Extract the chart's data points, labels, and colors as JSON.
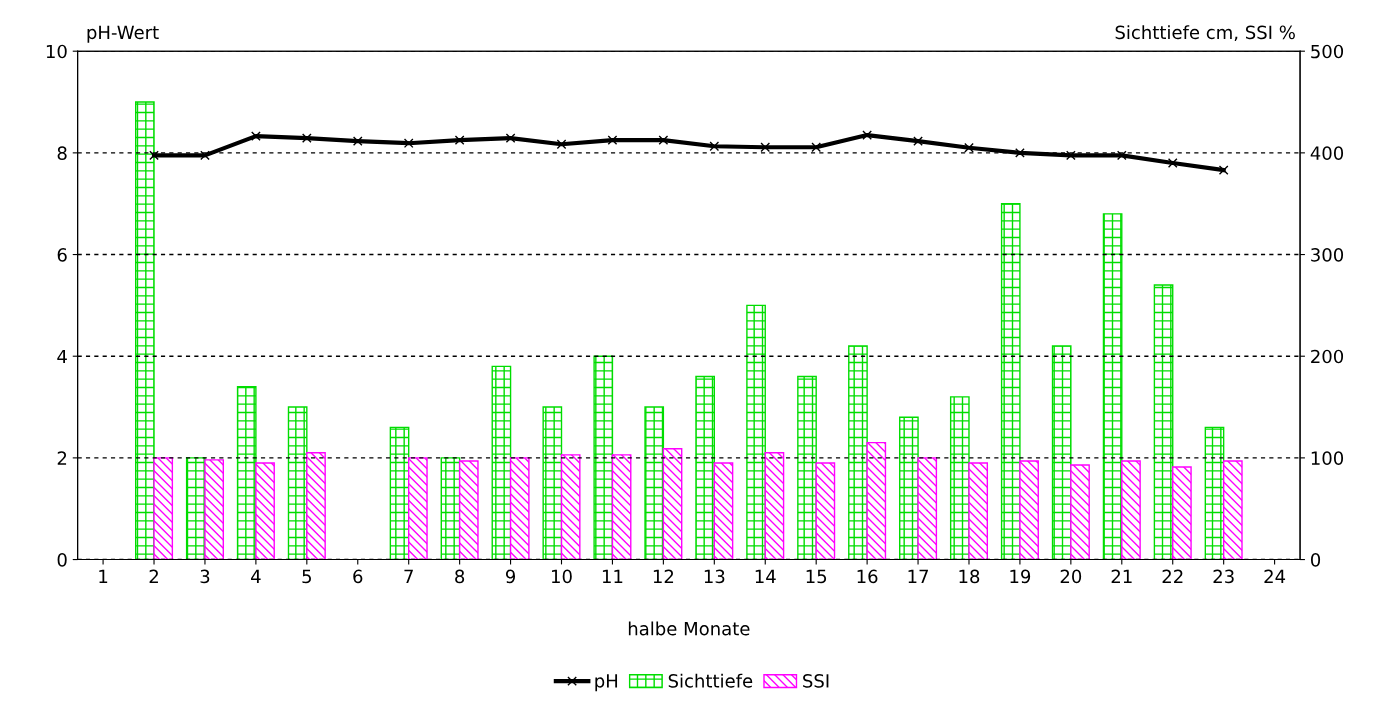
{
  "chart_data": {
    "type": "bar",
    "xlabel": "halbe Monate",
    "ylabel": "pH-Wert",
    "y2label": "Sichttiefe cm, SSI %",
    "categories": [
      "1",
      "2",
      "3",
      "4",
      "5",
      "6",
      "7",
      "8",
      "9",
      "10",
      "11",
      "12",
      "13",
      "14",
      "15",
      "16",
      "17",
      "18",
      "19",
      "20",
      "21",
      "22",
      "23",
      "24"
    ],
    "series": [
      {
        "name": "pH",
        "type": "line",
        "color": "#000000",
        "marker": "cross",
        "values": [
          null,
          7.95,
          7.95,
          8.33,
          8.29,
          8.23,
          8.19,
          8.25,
          8.29,
          8.17,
          8.25,
          8.25,
          8.13,
          8.11,
          8.11,
          8.35,
          8.23,
          8.1,
          8.0,
          7.95,
          7.95,
          7.8,
          7.66,
          null
        ]
      },
      {
        "name": "Sichttiefe",
        "axis": "y2",
        "color": "#00dd00",
        "values": [
          null,
          450,
          100,
          170,
          150,
          null,
          130,
          100,
          190,
          150,
          200,
          150,
          180,
          250,
          180,
          210,
          140,
          160,
          350,
          210,
          340,
          270,
          130,
          null
        ]
      },
      {
        "name": "SSI",
        "axis": "y2",
        "color": "#ff00ff",
        "values": [
          null,
          100,
          98,
          95,
          105,
          null,
          100,
          97,
          100,
          103,
          103,
          109,
          95,
          105,
          95,
          115,
          100,
          95,
          97,
          93,
          97,
          91,
          97,
          null
        ]
      }
    ],
    "ylim": [
      0,
      10
    ],
    "yticks": [
      0,
      2,
      4,
      6,
      8,
      10
    ],
    "y2lim": [
      0,
      500
    ],
    "y2ticks": [
      0,
      100,
      200,
      300,
      400,
      500
    ],
    "grid": "y",
    "legend": "bottom"
  }
}
